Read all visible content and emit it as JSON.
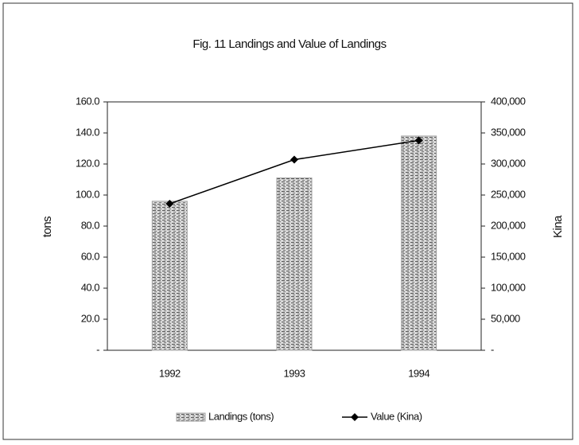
{
  "chart_data": {
    "type": "bar",
    "title": "Fig. 11 Landings and Value of Landings",
    "categories": [
      "1992",
      "1993",
      "1994"
    ],
    "series": [
      {
        "name": "Landings (tons)",
        "color": "#a0a0a0",
        "values": [
          96,
          111,
          138
        ]
      },
      {
        "name": "Value (Kina)",
        "color": "#000000",
        "axis": "y2",
        "type": "line",
        "values": [
          236000,
          307000,
          338000
        ]
      }
    ],
    "ylabel": "tons",
    "y2label": "Kina",
    "ylim": [
      0,
      160
    ],
    "yticks": [
      {
        "value": 0,
        "label": "-"
      },
      {
        "value": 20,
        "label": "20.0"
      },
      {
        "value": 40,
        "label": "40.0"
      },
      {
        "value": 60,
        "label": "60.0"
      },
      {
        "value": 80,
        "label": "80.0"
      },
      {
        "value": 100,
        "label": "100.0"
      },
      {
        "value": 120,
        "label": "120.0"
      },
      {
        "value": 140,
        "label": "140.0"
      },
      {
        "value": 160,
        "label": "160.0"
      }
    ],
    "y2lim": [
      0,
      400000
    ],
    "y2ticks": [
      {
        "value": 0,
        "label": "-"
      },
      {
        "value": 50000,
        "label": "50,000"
      },
      {
        "value": 100000,
        "label": "100,000"
      },
      {
        "value": 150000,
        "label": "150,000"
      },
      {
        "value": 200000,
        "label": "200,000"
      },
      {
        "value": 250000,
        "label": "250,000"
      },
      {
        "value": 300000,
        "label": "300,000"
      },
      {
        "value": 350000,
        "label": "350,000"
      },
      {
        "value": 400000,
        "label": "400,000"
      }
    ],
    "legend": "bottom"
  }
}
